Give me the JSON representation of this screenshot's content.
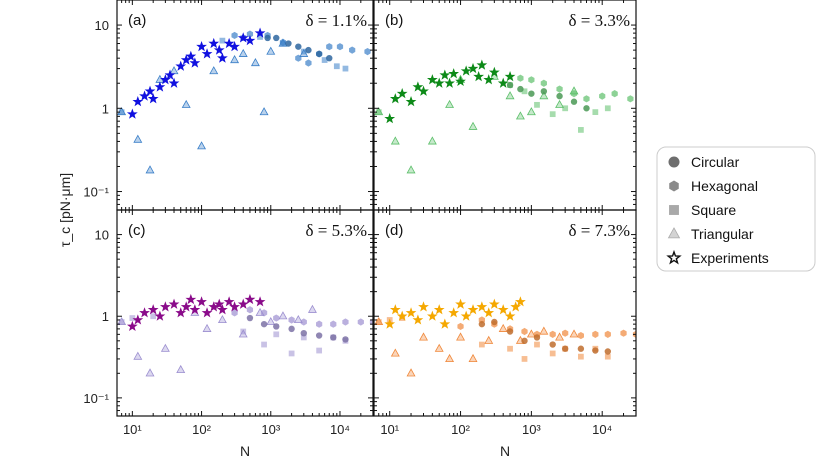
{
  "chart_data": {
    "type": "scatter",
    "xlabel": "N",
    "ylabel": "τ_c [pN·μm]",
    "xscale": "log",
    "yscale": "log",
    "xlim": [
      6,
      30000
    ],
    "ylim": [
      0.06,
      20
    ],
    "x_ticks": [
      "10¹",
      "10²",
      "10³",
      "10⁴"
    ],
    "y_ticks": [
      "10",
      "1",
      "10⁻¹"
    ],
    "legend": {
      "placement": "right",
      "entries": [
        {
          "label": "Circular",
          "marker": "circle"
        },
        {
          "label": "Hexagonal",
          "marker": "hexagon"
        },
        {
          "label": "Square",
          "marker": "square"
        },
        {
          "label": "Triangular",
          "marker": "triangle"
        },
        {
          "label": "Experiments",
          "marker": "star"
        }
      ]
    },
    "panels": [
      {
        "label": "(a)",
        "delta": "δ = 1.1%",
        "color": "#3a7fc8",
        "exp_color": "#1010e0",
        "series": {
          "circular": [
            [
              900,
              7
            ],
            [
              1200,
              7
            ],
            [
              1800,
              6
            ],
            [
              2500,
              5.5
            ],
            [
              3500,
              5
            ],
            [
              5000,
              4.5
            ],
            [
              7000,
              4
            ]
          ],
          "hexagonal": [
            [
              300,
              7.5
            ],
            [
              500,
              7.8
            ],
            [
              900,
              7.5
            ],
            [
              1500,
              6.2
            ],
            [
              2500,
              4
            ],
            [
              3500,
              3.5
            ],
            [
              5000,
              4.5
            ],
            [
              7000,
              5.5
            ],
            [
              10000,
              5.5
            ],
            [
              15000,
              5
            ],
            [
              25000,
              4.8
            ]
          ],
          "square": [
            [
              7,
              0.9
            ],
            [
              200,
              6.5
            ],
            [
              400,
              7
            ],
            [
              700,
              7.2
            ],
            [
              1500,
              6
            ],
            [
              3000,
              4.8
            ],
            [
              6000,
              3.8
            ],
            [
              9000,
              3.2
            ],
            [
              12000,
              3
            ]
          ],
          "triangular": [
            [
              7,
              0.9
            ],
            [
              12,
              0.42
            ],
            [
              18,
              0.18
            ],
            [
              25,
              2.2
            ],
            [
              40,
              2.8
            ],
            [
              60,
              1.1
            ],
            [
              100,
              0.35
            ],
            [
              150,
              2.8
            ],
            [
              300,
              3.8
            ],
            [
              400,
              4.5
            ],
            [
              600,
              3.5
            ],
            [
              800,
              0.9
            ],
            [
              1000,
              4.8
            ],
            [
              1500,
              6
            ],
            [
              3000,
              4.5
            ]
          ],
          "experiments": [
            [
              10,
              0.85
            ],
            [
              12,
              1.2
            ],
            [
              15,
              1.4
            ],
            [
              18,
              1.6
            ],
            [
              20,
              1.3
            ],
            [
              25,
              1.8
            ],
            [
              30,
              2.2
            ],
            [
              35,
              2.5
            ],
            [
              40,
              2
            ],
            [
              50,
              3.2
            ],
            [
              60,
              3.8
            ],
            [
              70,
              4.2
            ],
            [
              80,
              3.5
            ],
            [
              100,
              5.5
            ],
            [
              120,
              4.5
            ],
            [
              150,
              6
            ],
            [
              180,
              5
            ],
            [
              200,
              4
            ],
            [
              250,
              6
            ],
            [
              300,
              5.5
            ],
            [
              400,
              7
            ],
            [
              500,
              6.5
            ],
            [
              700,
              8
            ]
          ]
        }
      },
      {
        "label": "(b)",
        "delta": "δ = 3.3%",
        "color": "#5cbf6a",
        "exp_color": "#0d8a18",
        "series": {
          "circular": [
            [
              500,
              1.9
            ],
            [
              700,
              1.7
            ],
            [
              1000,
              1.5
            ],
            [
              1500,
              1.6
            ],
            [
              2500,
              1.4
            ],
            [
              4000,
              1.2
            ],
            [
              6000,
              1.0
            ]
          ],
          "hexagonal": [
            [
              700,
              2.3
            ],
            [
              1000,
              2.2
            ],
            [
              1500,
              2.0
            ],
            [
              2500,
              1.7
            ],
            [
              4000,
              1.5
            ],
            [
              6000,
              1.3
            ],
            [
              10000,
              1.4
            ],
            [
              15000,
              1.5
            ],
            [
              25000,
              1.3
            ]
          ],
          "square": [
            [
              7,
              0.9
            ],
            [
              500,
              1.9
            ],
            [
              800,
              1.6
            ],
            [
              1200,
              1.1
            ],
            [
              2000,
              0.85
            ],
            [
              3000,
              1.0
            ],
            [
              5000,
              0.55
            ],
            [
              8000,
              0.9
            ],
            [
              12000,
              1.0
            ]
          ],
          "triangular": [
            [
              7,
              0.9
            ],
            [
              12,
              0.4
            ],
            [
              20,
              0.18
            ],
            [
              40,
              0.4
            ],
            [
              70,
              1.1
            ],
            [
              100,
              2.2
            ],
            [
              150,
              0.6
            ],
            [
              300,
              2.4
            ],
            [
              500,
              1.4
            ],
            [
              700,
              0.8
            ],
            [
              1000,
              0.9
            ],
            [
              1500,
              1.4
            ],
            [
              2500,
              1.1
            ],
            [
              4000,
              1.6
            ]
          ],
          "experiments": [
            [
              10,
              0.75
            ],
            [
              12,
              1.3
            ],
            [
              15,
              1.5
            ],
            [
              20,
              1.2
            ],
            [
              25,
              1.8
            ],
            [
              30,
              1.6
            ],
            [
              40,
              2.2
            ],
            [
              50,
              2.0
            ],
            [
              60,
              2.5
            ],
            [
              70,
              2.0
            ],
            [
              80,
              2.6
            ],
            [
              100,
              2.1
            ],
            [
              120,
              2.8
            ],
            [
              150,
              3.0
            ],
            [
              180,
              2.4
            ],
            [
              200,
              3.3
            ],
            [
              250,
              2.2
            ],
            [
              300,
              2.7
            ],
            [
              400,
              2.0
            ],
            [
              500,
              2.4
            ]
          ]
        }
      },
      {
        "label": "(c)",
        "delta": "δ = 5.3%",
        "color": "#9c8fd0",
        "exp_color": "#8a0b8a",
        "series": {
          "circular": [
            [
              500,
              0.95
            ],
            [
              800,
              0.8
            ],
            [
              1200,
              0.75
            ],
            [
              2000,
              0.7
            ],
            [
              3000,
              0.62
            ],
            [
              5000,
              0.58
            ],
            [
              8000,
              0.55
            ],
            [
              12000,
              0.52
            ]
          ],
          "hexagonal": [
            [
              300,
              1.1
            ],
            [
              500,
              1.2
            ],
            [
              800,
              1.1
            ],
            [
              1200,
              0.95
            ],
            [
              2000,
              0.9
            ],
            [
              3000,
              0.85
            ],
            [
              5000,
              0.8
            ],
            [
              8000,
              0.8
            ],
            [
              12000,
              0.85
            ],
            [
              20000,
              0.85
            ],
            [
              30000,
              0.85
            ]
          ],
          "square": [
            [
              7,
              0.85
            ],
            [
              10,
              0.95
            ],
            [
              20,
              1.0
            ],
            [
              400,
              0.65
            ],
            [
              800,
              0.45
            ],
            [
              1200,
              0.6
            ],
            [
              2000,
              0.35
            ],
            [
              3000,
              0.55
            ],
            [
              5000,
              0.38
            ],
            [
              8000,
              0.55
            ],
            [
              12000,
              0.5
            ]
          ],
          "triangular": [
            [
              7,
              0.85
            ],
            [
              12,
              0.32
            ],
            [
              18,
              0.2
            ],
            [
              30,
              0.4
            ],
            [
              50,
              0.22
            ],
            [
              80,
              1.1
            ],
            [
              120,
              0.7
            ],
            [
              200,
              0.9
            ],
            [
              400,
              0.6
            ],
            [
              700,
              1.1
            ],
            [
              1000,
              0.85
            ],
            [
              1500,
              1.0
            ],
            [
              2500,
              0.9
            ],
            [
              4000,
              1.2
            ]
          ],
          "experiments": [
            [
              10,
              0.75
            ],
            [
              12,
              0.9
            ],
            [
              15,
              1.1
            ],
            [
              20,
              1.2
            ],
            [
              25,
              1.0
            ],
            [
              30,
              1.3
            ],
            [
              40,
              1.4
            ],
            [
              50,
              1.1
            ],
            [
              60,
              1.3
            ],
            [
              70,
              1.6
            ],
            [
              80,
              1.2
            ],
            [
              100,
              1.5
            ],
            [
              120,
              1.1
            ],
            [
              150,
              1.3
            ],
            [
              180,
              1.4
            ],
            [
              200,
              1.2
            ],
            [
              250,
              1.5
            ],
            [
              300,
              1.3
            ],
            [
              400,
              1.4
            ],
            [
              500,
              1.6
            ],
            [
              700,
              1.5
            ]
          ]
        }
      },
      {
        "label": "(d)",
        "delta": "δ = 7.3%",
        "color": "#f0883a",
        "exp_color": "#f5a800",
        "series": {
          "circular": [
            [
              200,
              0.8
            ],
            [
              300,
              0.85
            ],
            [
              500,
              0.65
            ],
            [
              800,
              0.5
            ],
            [
              1200,
              0.55
            ],
            [
              2000,
              0.45
            ],
            [
              3000,
              0.4
            ],
            [
              5000,
              0.4
            ],
            [
              8000,
              0.38
            ],
            [
              12000,
              0.37
            ]
          ],
          "hexagonal": [
            [
              100,
              0.75
            ],
            [
              200,
              0.9
            ],
            [
              300,
              0.8
            ],
            [
              500,
              0.7
            ],
            [
              800,
              0.65
            ],
            [
              1200,
              0.6
            ],
            [
              2000,
              0.6
            ],
            [
              3000,
              0.62
            ],
            [
              5000,
              0.58
            ],
            [
              8000,
              0.6
            ],
            [
              12000,
              0.6
            ],
            [
              20000,
              0.62
            ],
            [
              30000,
              0.6
            ]
          ],
          "square": [
            [
              7,
              0.85
            ],
            [
              10,
              0.9
            ],
            [
              15,
              0.95
            ],
            [
              200,
              0.45
            ],
            [
              500,
              0.4
            ],
            [
              800,
              0.3
            ],
            [
              1200,
              0.45
            ],
            [
              2000,
              0.35
            ],
            [
              3000,
              0.4
            ],
            [
              5000,
              0.32
            ],
            [
              8000,
              0.4
            ],
            [
              12000,
              0.32
            ]
          ],
          "triangular": [
            [
              7,
              0.85
            ],
            [
              12,
              0.35
            ],
            [
              20,
              0.2
            ],
            [
              30,
              0.55
            ],
            [
              50,
              0.4
            ],
            [
              70,
              0.3
            ],
            [
              100,
              0.55
            ],
            [
              150,
              0.3
            ],
            [
              250,
              0.5
            ],
            [
              400,
              0.7
            ],
            [
              700,
              0.5
            ],
            [
              1000,
              0.6
            ],
            [
              1500,
              0.65
            ],
            [
              2500,
              0.55
            ],
            [
              4000,
              0.6
            ]
          ],
          "experiments": [
            [
              10,
              0.8
            ],
            [
              12,
              1.2
            ],
            [
              15,
              1.0
            ],
            [
              20,
              1.1
            ],
            [
              25,
              0.9
            ],
            [
              30,
              1.3
            ],
            [
              40,
              1.0
            ],
            [
              50,
              1.2
            ],
            [
              60,
              0.8
            ],
            [
              80,
              1.1
            ],
            [
              100,
              1.4
            ],
            [
              120,
              1.0
            ],
            [
              150,
              1.2
            ],
            [
              200,
              1.3
            ],
            [
              250,
              1.1
            ],
            [
              300,
              1.4
            ],
            [
              400,
              1.2
            ],
            [
              500,
              1.0
            ],
            [
              600,
              1.3
            ],
            [
              700,
              1.5
            ]
          ]
        }
      }
    ]
  }
}
